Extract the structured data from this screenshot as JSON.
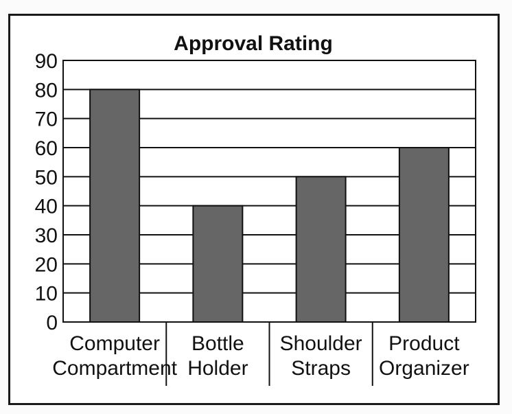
{
  "chart_data": {
    "type": "bar",
    "title": "Approval Rating",
    "xlabel": "",
    "ylabel": "",
    "categories": [
      [
        "Computer",
        "Compartment"
      ],
      [
        "Bottle",
        "Holder"
      ],
      [
        "Shoulder",
        "Straps"
      ],
      [
        "Product",
        "Organizer"
      ]
    ],
    "values": [
      80,
      40,
      50,
      60
    ],
    "ylim": [
      0,
      90
    ],
    "yticks": [
      0,
      10,
      20,
      30,
      40,
      50,
      60,
      70,
      80,
      90
    ],
    "grid": true,
    "bar_color": "#666666",
    "grid_color": "#111111",
    "axis_color": "#111111"
  }
}
